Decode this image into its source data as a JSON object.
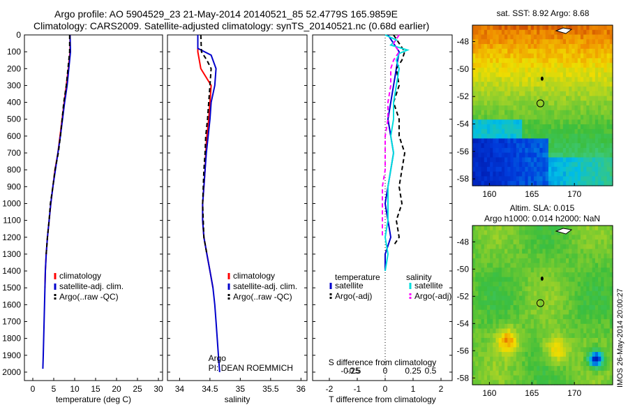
{
  "header": {
    "line1": "Argo profile: AO 5904529_23 21-May-2014 20140521_85 52.4779S 165.9859E",
    "line2": "Climatology: CARS2009. Satellite-adjusted climatology: synTS_20140521.nc (0.68d earlier)"
  },
  "colors": {
    "climatology": "#ff0000",
    "satellite": "#0000cc",
    "argo": "#000000",
    "salinity_satellite": "#00dddd",
    "salinity_argo": "#ff00ff"
  },
  "chart_data": [
    {
      "type": "line",
      "id": "temperature-panel",
      "xlabel": "temperature (deg C)",
      "ylabel": "",
      "xlim": [
        -2,
        31
      ],
      "ylim": [
        2050,
        0
      ],
      "xticks": [
        0,
        5,
        10,
        15,
        20,
        25,
        30
      ],
      "yticks": [
        0,
        100,
        200,
        300,
        400,
        500,
        600,
        700,
        800,
        900,
        1000,
        1100,
        1200,
        1300,
        1400,
        1500,
        1600,
        1700,
        1800,
        1900,
        2000
      ],
      "legend": [
        "climatology",
        "satellite-adj. clim.",
        "Argo(..raw -QC)"
      ],
      "series": [
        {
          "name": "climatology",
          "color": "#ff0000",
          "dash": "",
          "points": [
            [
              8.9,
              0
            ],
            [
              8.9,
              100
            ],
            [
              8.5,
              200
            ],
            [
              8.0,
              300
            ],
            [
              7.5,
              400
            ],
            [
              7.0,
              500
            ],
            [
              6.5,
              600
            ],
            [
              6.0,
              700
            ],
            [
              5.3,
              800
            ],
            [
              4.8,
              900
            ],
            [
              4.3,
              1000
            ],
            [
              3.9,
              1100
            ],
            [
              3.5,
              1200
            ],
            [
              3.2,
              1300
            ],
            [
              3.0,
              1400
            ],
            [
              2.9,
              1500
            ]
          ]
        },
        {
          "name": "satellite-adj. clim.",
          "color": "#0000cc",
          "dash": "",
          "points": [
            [
              8.9,
              0
            ],
            [
              9.0,
              100
            ],
            [
              8.6,
              200
            ],
            [
              8.2,
              300
            ],
            [
              7.6,
              400
            ],
            [
              7.1,
              500
            ],
            [
              6.6,
              600
            ],
            [
              6.0,
              700
            ],
            [
              5.4,
              800
            ],
            [
              4.8,
              900
            ],
            [
              4.3,
              1000
            ],
            [
              3.9,
              1100
            ],
            [
              3.5,
              1200
            ],
            [
              3.2,
              1300
            ],
            [
              3.0,
              1400
            ],
            [
              2.9,
              1500
            ],
            [
              2.8,
              1600
            ],
            [
              2.7,
              1700
            ],
            [
              2.6,
              1800
            ],
            [
              2.5,
              1900
            ],
            [
              2.4,
              1980
            ]
          ]
        },
        {
          "name": "Argo(..raw -QC)",
          "color": "#000000",
          "dash": "6,4",
          "points": [
            [
              8.8,
              0
            ],
            [
              8.8,
              100
            ],
            [
              8.4,
              200
            ],
            [
              8.0,
              300
            ],
            [
              7.4,
              400
            ],
            [
              7.0,
              500
            ],
            [
              6.6,
              600
            ],
            [
              6.1,
              700
            ],
            [
              5.3,
              800
            ],
            [
              4.8,
              900
            ],
            [
              4.2,
              1000
            ],
            [
              3.9,
              1100
            ],
            [
              3.5,
              1200
            ],
            [
              3.2,
              1300
            ]
          ]
        }
      ]
    },
    {
      "type": "line",
      "id": "salinity-panel",
      "xlabel": "salinity",
      "ylabel": "",
      "xlim": [
        33.8,
        36.1
      ],
      "ylim": [
        2050,
        0
      ],
      "xticks": [
        34,
        34.5,
        35,
        35.5,
        36
      ],
      "legend": [
        "climatology",
        "satellite-adj. clim.",
        "Argo(..raw -QC)"
      ],
      "annotation": [
        "Argo",
        "PI: DEAN ROEMMICH"
      ],
      "series": [
        {
          "name": "climatology",
          "color": "#ff0000",
          "dash": "",
          "points": [
            [
              34.3,
              0
            ],
            [
              34.3,
              100
            ],
            [
              34.35,
              200
            ],
            [
              34.52,
              300
            ],
            [
              34.5,
              400
            ],
            [
              34.48,
              500
            ],
            [
              34.45,
              600
            ],
            [
              34.43,
              700
            ],
            [
              34.42,
              800
            ],
            [
              34.4,
              900
            ],
            [
              34.38,
              1000
            ],
            [
              34.38,
              1100
            ],
            [
              34.4,
              1200
            ],
            [
              34.45,
              1300
            ],
            [
              34.5,
              1400
            ],
            [
              34.55,
              1500
            ]
          ]
        },
        {
          "name": "satellite-adj. clim.",
          "color": "#0000cc",
          "dash": "",
          "points": [
            [
              34.3,
              0
            ],
            [
              34.3,
              80
            ],
            [
              34.52,
              120
            ],
            [
              34.6,
              200
            ],
            [
              34.58,
              300
            ],
            [
              34.52,
              400
            ],
            [
              34.5,
              500
            ],
            [
              34.47,
              600
            ],
            [
              34.44,
              700
            ],
            [
              34.42,
              800
            ],
            [
              34.4,
              900
            ],
            [
              34.38,
              1000
            ],
            [
              34.38,
              1100
            ],
            [
              34.4,
              1200
            ],
            [
              34.45,
              1300
            ],
            [
              34.5,
              1400
            ],
            [
              34.55,
              1500
            ],
            [
              34.58,
              1600
            ],
            [
              34.6,
              1700
            ],
            [
              34.62,
              1800
            ],
            [
              34.64,
              1900
            ],
            [
              34.66,
              2000
            ]
          ]
        },
        {
          "name": "Argo(..raw -QC)",
          "color": "#000000",
          "dash": "6,4",
          "points": [
            [
              34.35,
              0
            ],
            [
              34.36,
              100
            ],
            [
              34.45,
              150
            ],
            [
              34.52,
              200
            ],
            [
              34.5,
              300
            ],
            [
              34.48,
              400
            ],
            [
              34.46,
              500
            ],
            [
              34.43,
              600
            ],
            [
              34.42,
              700
            ],
            [
              34.4,
              800
            ],
            [
              34.39,
              900
            ],
            [
              34.38,
              1000
            ],
            [
              34.39,
              1100
            ],
            [
              34.4,
              1200
            ],
            [
              34.45,
              1300
            ]
          ]
        }
      ]
    },
    {
      "type": "line",
      "id": "difference-panel",
      "xlabel": "T difference from climatology",
      "xlabel_top": "S difference from climatology",
      "xlim": [
        -2.6,
        2.4
      ],
      "ylim": [
        2050,
        0
      ],
      "xticks": [
        -2,
        -1,
        0,
        1,
        2
      ],
      "xtick_labels": [
        "-2",
        "-1",
        "0",
        "1",
        "2"
      ],
      "sticks": [
        "-0.5",
        "-0.25",
        "0",
        "0.25",
        "0.5"
      ],
      "legend_titles": [
        "temperature",
        "salinity"
      ],
      "legend": [
        "satellite",
        "Argo(-adj)",
        "satellite",
        "Argo(-adj)"
      ],
      "series": [
        {
          "name": "satellite",
          "color": "#0000cc",
          "dash": "",
          "points": [
            [
              0.1,
              0
            ],
            [
              0.3,
              50
            ],
            [
              0.5,
              100
            ],
            [
              0.4,
              200
            ],
            [
              0.3,
              300
            ],
            [
              0.2,
              400
            ],
            [
              0.1,
              500
            ],
            [
              0.2,
              600
            ],
            [
              0.3,
              700
            ],
            [
              0.2,
              800
            ],
            [
              0.1,
              900
            ],
            [
              0.0,
              1000
            ],
            [
              0.1,
              1100
            ],
            [
              0.2,
              1200
            ],
            [
              0.0,
              1300
            ],
            [
              0.0,
              1400
            ]
          ]
        },
        {
          "name": "Argo(-adj)",
          "color": "#000000",
          "dash": "6,4",
          "points": [
            [
              0.3,
              0
            ],
            [
              0.5,
              50
            ],
            [
              0.7,
              100
            ],
            [
              0.6,
              150
            ],
            [
              0.4,
              200
            ],
            [
              0.5,
              300
            ],
            [
              0.3,
              400
            ],
            [
              0.5,
              500
            ],
            [
              0.5,
              600
            ],
            [
              0.7,
              700
            ],
            [
              0.6,
              800
            ],
            [
              0.5,
              900
            ],
            [
              0.6,
              1000
            ],
            [
              0.4,
              1100
            ],
            [
              0.5,
              1200
            ],
            [
              0.3,
              1250
            ]
          ]
        },
        {
          "name": "satellite",
          "color": "#00dddd",
          "dash": "",
          "points": [
            [
              0.0,
              0
            ],
            [
              0.4,
              30
            ],
            [
              0.2,
              60
            ],
            [
              0.8,
              90
            ],
            [
              0.5,
              110
            ],
            [
              0.4,
              150
            ],
            [
              0.5,
              200
            ],
            [
              0.4,
              300
            ],
            [
              0.3,
              400
            ],
            [
              0.3,
              500
            ],
            [
              0.2,
              600
            ],
            [
              0.3,
              700
            ],
            [
              0.2,
              800
            ],
            [
              0.1,
              900
            ],
            [
              0.1,
              1000
            ],
            [
              0.1,
              1100
            ],
            [
              0.0,
              1200
            ],
            [
              0.1,
              1300
            ],
            [
              0.0,
              1400
            ]
          ]
        },
        {
          "name": "Argo(-adj)",
          "color": "#ff00ff",
          "dash": "6,4",
          "points": [
            [
              0.5,
              0
            ],
            [
              0.3,
              50
            ],
            [
              0.5,
              100
            ],
            [
              0.3,
              150
            ],
            [
              0.2,
              200
            ],
            [
              0.2,
              300
            ],
            [
              0.1,
              400
            ],
            [
              0.1,
              500
            ],
            [
              0.0,
              600
            ],
            [
              0.0,
              700
            ],
            [
              0.0,
              800
            ],
            [
              -0.1,
              900
            ],
            [
              -0.1,
              1000
            ],
            [
              -0.1,
              1100
            ],
            [
              -0.1,
              1200
            ]
          ]
        }
      ]
    },
    {
      "type": "heatmap",
      "id": "sst-map",
      "title": "sat. SST: 8.92  Argo: 8.68",
      "xlim": [
        158,
        174.5
      ],
      "ylim": [
        -58.5,
        -46.8
      ],
      "xticks": [
        160,
        165,
        170
      ],
      "yticks": [
        -48,
        -50,
        -52,
        -54,
        -56,
        -58
      ],
      "float_lon": 166.0,
      "float_lat": -52.5
    },
    {
      "type": "heatmap",
      "id": "sla-map",
      "title": [
        "Altim. SLA: 0.015",
        "Argo h1000: 0.014  h2000: NaN"
      ],
      "xlim": [
        158,
        174.5
      ],
      "ylim": [
        -58.5,
        -46.8
      ],
      "xticks": [
        160,
        165,
        170
      ],
      "yticks": [
        -48,
        -50,
        -52,
        -54,
        -56,
        -58
      ],
      "float_lon": 166.0,
      "float_lat": -52.5,
      "watermark": "IMOS 26-May-2014 20:00:27"
    }
  ]
}
